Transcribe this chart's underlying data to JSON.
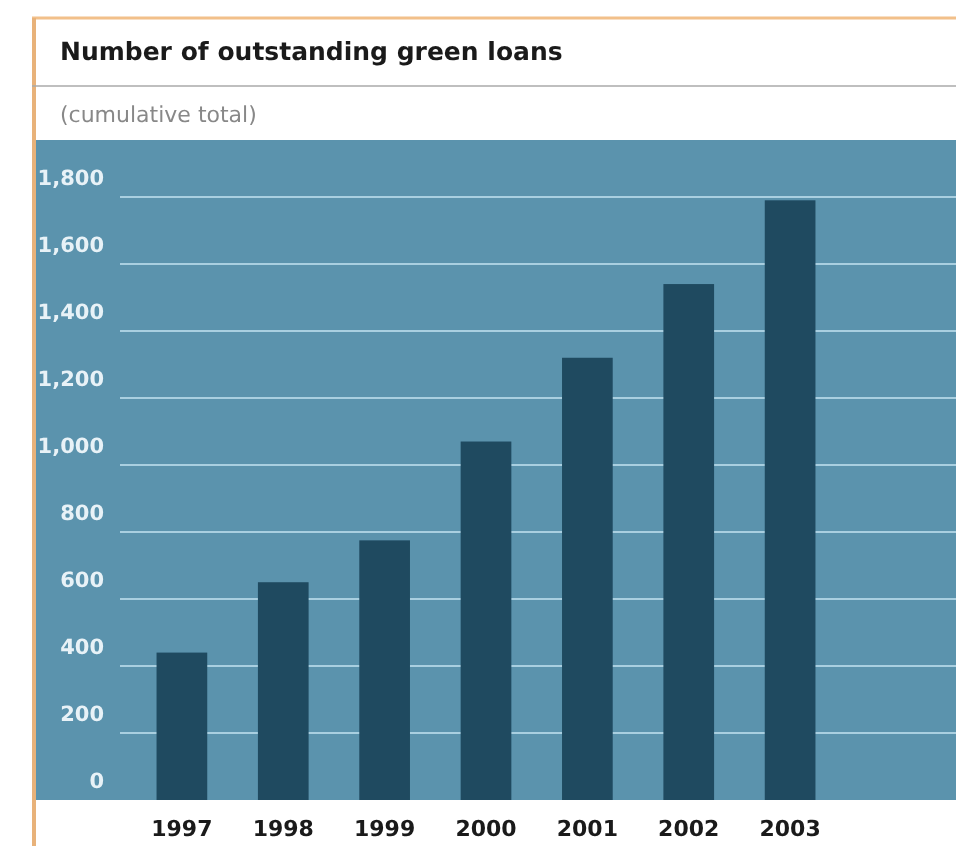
{
  "chart_data": {
    "type": "bar",
    "title": "Number of outstanding green loans",
    "subtitle": "(cumulative total)",
    "categories": [
      "1997",
      "1998",
      "1999",
      "2000",
      "2001",
      "2002",
      "2003"
    ],
    "values": [
      440,
      650,
      775,
      1070,
      1320,
      1540,
      1790
    ],
    "color": "#1f4a60",
    "ylim": [
      0,
      1970
    ],
    "yticks": [
      0,
      {
        "value": 200,
        "label": "200"
      },
      {
        "value": 400,
        "label": "400"
      },
      {
        "value": 600,
        "label": "600"
      },
      {
        "value": 800,
        "label": "800"
      },
      {
        "value": 1000,
        "label": "1,000"
      },
      {
        "value": 1200,
        "label": "1,200"
      },
      {
        "value": 1400,
        "label": "1,400"
      },
      {
        "value": 1600,
        "label": "1,600"
      },
      {
        "value": 1800,
        "label": "1,800"
      }
    ],
    "grid": "y"
  }
}
